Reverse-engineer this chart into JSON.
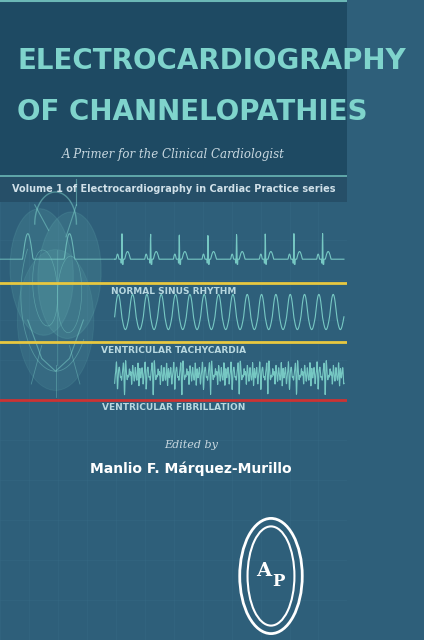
{
  "bg_color": "#2e5f7a",
  "bg_dark": "#1e4a63",
  "title_line1": "ELECTROCARDIOGRAPHY",
  "title_line2": "OF CHANNELOPATHIES",
  "subtitle": "A Primer for the Clinical Cardiologist",
  "volume_text": "Volume 1 of Electrocardiography in Cardiac Practice series",
  "label1": "NORMAL SINUS RHYTHM",
  "label2": "VENTRICULAR TACHYCARDIA",
  "label3": "VENTRICULAR FIBRILLATION",
  "edited_by": "Edited by",
  "author": "Manlio F. Márquez-Murillo",
  "title_color": "#7fd4cc",
  "subtitle_color": "#c8d8e0",
  "volume_color": "#d0e0e8",
  "label_color": "#b8d8e0",
  "ecg_color": "#7fd4cc",
  "line1_color": "#e8c840",
  "line2_color": "#e8c840",
  "line3_color": "#cc3333",
  "grid_color": "#3a6e88",
  "header_bg": "#1e4a63",
  "strip_bg": "#264f68"
}
